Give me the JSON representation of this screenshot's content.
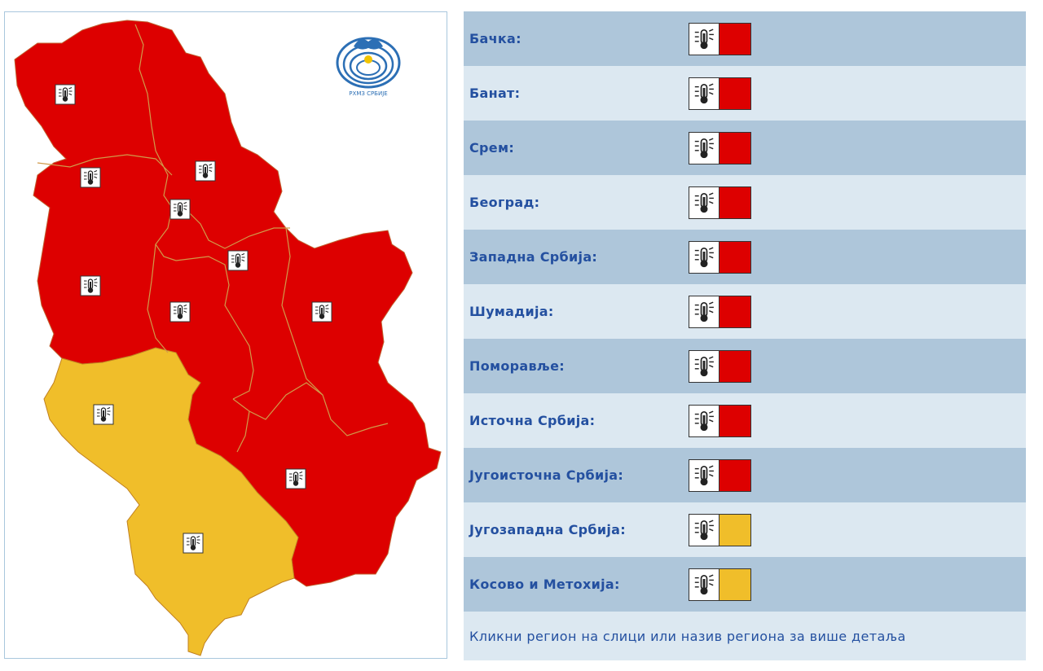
{
  "colors": {
    "red": "#dd0000",
    "yellow": "#f0be2a",
    "border": "#d09a4a",
    "row_dark": "#aec6da",
    "row_light": "#dce8f1",
    "label": "#2450a0"
  },
  "logo": {
    "icon": "rhmz-logo",
    "text": "РХМЗ СРБИЈЕ"
  },
  "regions": [
    {
      "name": "Бачка:",
      "level_color": "#dd0000",
      "icon": "thermometer-icon"
    },
    {
      "name": "Банат:",
      "level_color": "#dd0000",
      "icon": "thermometer-icon"
    },
    {
      "name": "Срем:",
      "level_color": "#dd0000",
      "icon": "thermometer-icon"
    },
    {
      "name": "Београд:",
      "level_color": "#dd0000",
      "icon": "thermometer-icon"
    },
    {
      "name": "Западна Србија:",
      "level_color": "#dd0000",
      "icon": "thermometer-icon"
    },
    {
      "name": "Шумадија:",
      "level_color": "#dd0000",
      "icon": "thermometer-icon"
    },
    {
      "name": "Поморавље:",
      "level_color": "#dd0000",
      "icon": "thermometer-icon"
    },
    {
      "name": "Источна Србија:",
      "level_color": "#dd0000",
      "icon": "thermometer-icon"
    },
    {
      "name": "Југоисточна Србија:",
      "level_color": "#dd0000",
      "icon": "thermometer-icon"
    },
    {
      "name": "Југозападна Србија:",
      "level_color": "#f0be2a",
      "icon": "thermometer-icon"
    },
    {
      "name": "Косово и Метохија:",
      "level_color": "#f0be2a",
      "icon": "thermometer-icon"
    }
  ],
  "footer": {
    "text": "Кликни регион на слици или назив региона за више детаља"
  }
}
